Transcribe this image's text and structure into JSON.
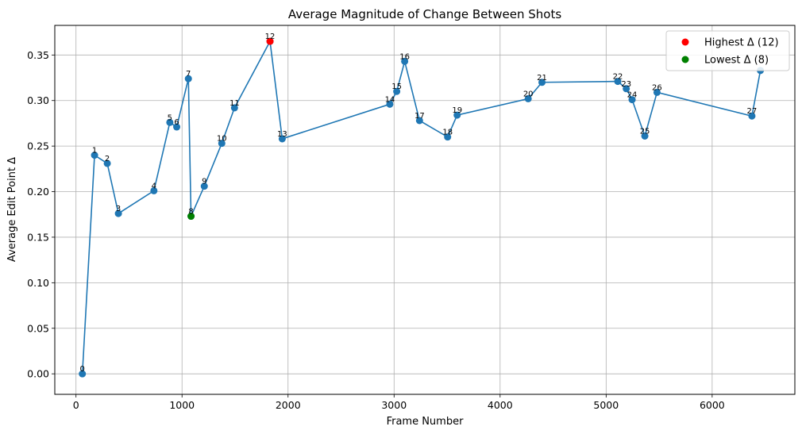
{
  "chart_data": {
    "type": "line",
    "title": "Average Magnitude of Change Between Shots",
    "xlabel": "Frame Number",
    "ylabel": "Average Edit Point Δ",
    "xlim": [
      -200,
      6780
    ],
    "ylim": [
      -0.0225,
      0.3825
    ],
    "xticks": [
      0,
      1000,
      2000,
      3000,
      4000,
      5000,
      6000
    ],
    "xtick_labels": [
      "0",
      "1000",
      "2000",
      "3000",
      "4000",
      "5000",
      "6000"
    ],
    "yticks": [
      0.0,
      0.05,
      0.1,
      0.15,
      0.2,
      0.25,
      0.3,
      0.35
    ],
    "ytick_labels": [
      "0.00",
      "0.05",
      "0.10",
      "0.15",
      "0.20",
      "0.25",
      "0.30",
      "0.35"
    ],
    "grid": true,
    "series": [
      {
        "name": "Average Edit Point Δ",
        "color": "#1f77b4",
        "points": [
          {
            "label": "0",
            "x": 60,
            "y": 0.0
          },
          {
            "label": "1",
            "x": 175,
            "y": 0.24
          },
          {
            "label": "2",
            "x": 295,
            "y": 0.231
          },
          {
            "label": "3",
            "x": 400,
            "y": 0.176
          },
          {
            "label": "4",
            "x": 735,
            "y": 0.201
          },
          {
            "label": "5",
            "x": 885,
            "y": 0.276
          },
          {
            "label": "6",
            "x": 950,
            "y": 0.271
          },
          {
            "label": "7",
            "x": 1060,
            "y": 0.324
          },
          {
            "label": "8",
            "x": 1085,
            "y": 0.173
          },
          {
            "label": "9",
            "x": 1210,
            "y": 0.206
          },
          {
            "label": "10",
            "x": 1375,
            "y": 0.253
          },
          {
            "label": "11",
            "x": 1495,
            "y": 0.292
          },
          {
            "label": "12",
            "x": 1830,
            "y": 0.365
          },
          {
            "label": "13",
            "x": 1945,
            "y": 0.258
          },
          {
            "label": "14",
            "x": 2960,
            "y": 0.296
          },
          {
            "label": "15",
            "x": 3025,
            "y": 0.31
          },
          {
            "label": "16",
            "x": 3100,
            "y": 0.343
          },
          {
            "label": "17",
            "x": 3240,
            "y": 0.278
          },
          {
            "label": "18",
            "x": 3505,
            "y": 0.26
          },
          {
            "label": "19",
            "x": 3595,
            "y": 0.284
          },
          {
            "label": "20",
            "x": 4265,
            "y": 0.302
          },
          {
            "label": "21",
            "x": 4395,
            "y": 0.32
          },
          {
            "label": "22",
            "x": 5110,
            "y": 0.321
          },
          {
            "label": "23",
            "x": 5190,
            "y": 0.313
          },
          {
            "label": "24",
            "x": 5245,
            "y": 0.301
          },
          {
            "label": "25",
            "x": 5365,
            "y": 0.261
          },
          {
            "label": "26",
            "x": 5480,
            "y": 0.309
          },
          {
            "label": "27",
            "x": 6375,
            "y": 0.283
          },
          {
            "label": "",
            "x": 6455,
            "y": 0.333
          }
        ]
      }
    ],
    "highlights": [
      {
        "name": "Highest Δ (12)",
        "x": 1830,
        "y": 0.365,
        "color": "#ff0000"
      },
      {
        "name": "Lowest Δ (8)",
        "x": 1085,
        "y": 0.173,
        "color": "#008000"
      }
    ],
    "legend": {
      "position": "top-right",
      "entries": [
        {
          "label": "Highest Δ (12)",
          "color": "#ff0000"
        },
        {
          "label": "Lowest Δ (8)",
          "color": "#008000"
        }
      ]
    }
  }
}
